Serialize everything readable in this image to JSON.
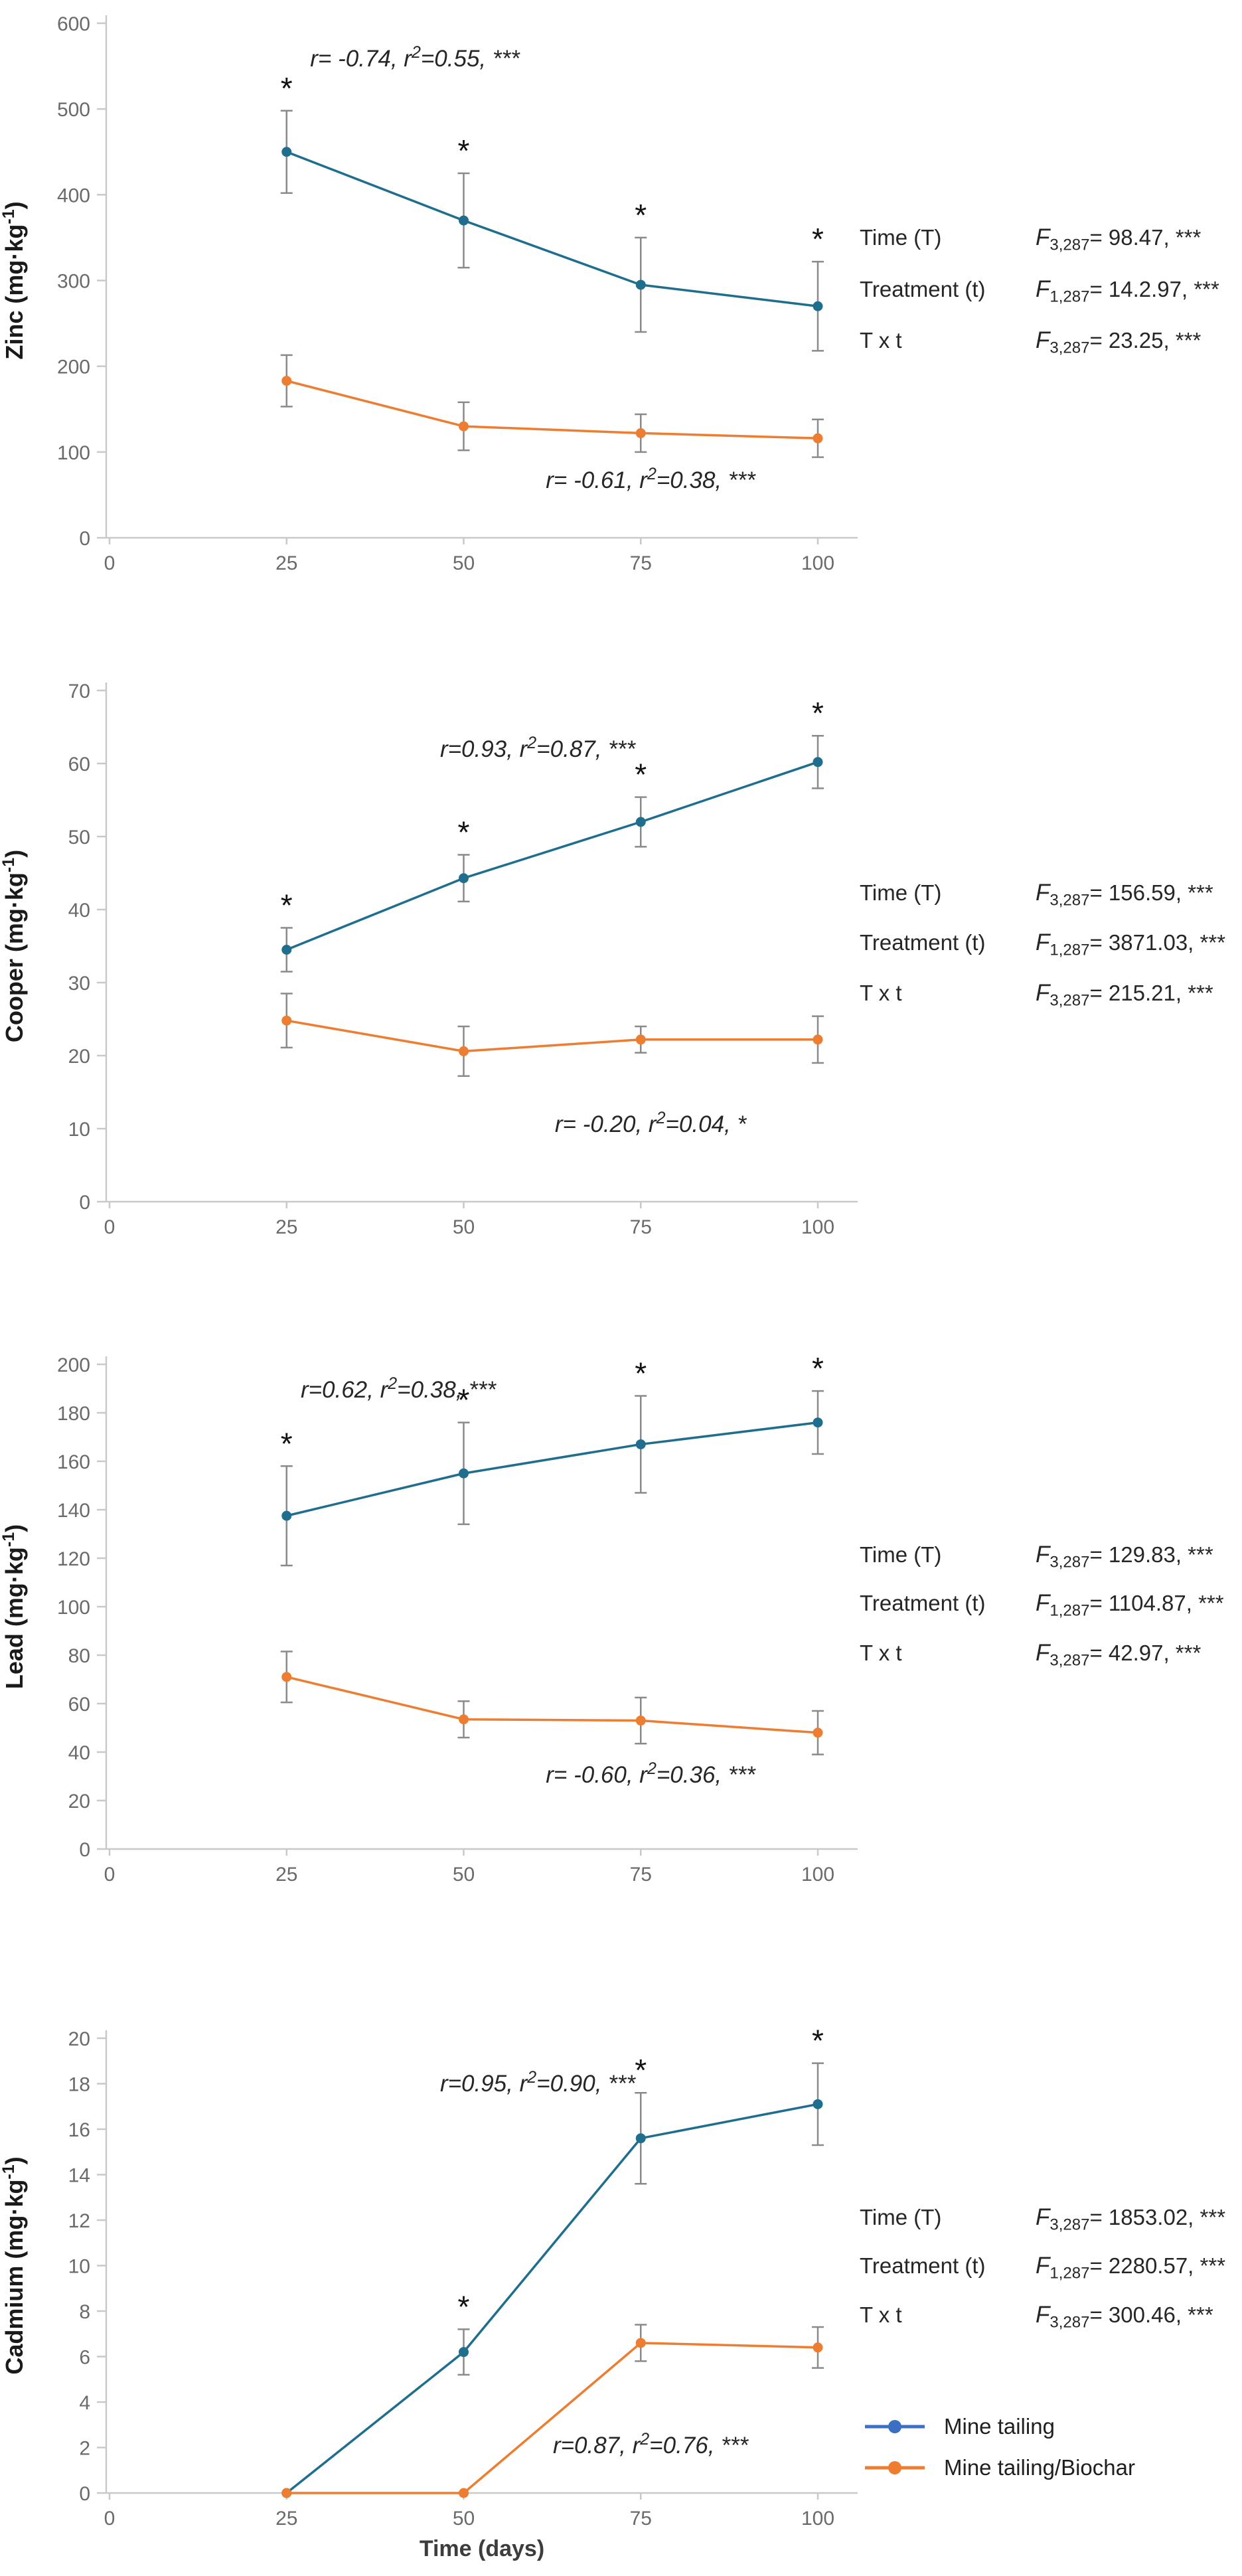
{
  "figure": {
    "xlabel": "Time (days)",
    "x_ticks": [
      0,
      25,
      50,
      75,
      100
    ],
    "legend": [
      {
        "label": "Mine tailing",
        "color": "#3a6fc4"
      },
      {
        "label": "Mine tailing/Biochar",
        "color": "#ed7d31"
      }
    ]
  },
  "colors": {
    "mine_tailing_line": "#1f6e8e",
    "biochar_line": "#ed7d31",
    "error_bar": "#8a8a8a",
    "axis": "#c9c9c9",
    "tick_label": "#6a6a6a",
    "axis_title": "#1a1a1a",
    "annotation_text": "#262626",
    "asterisk": "#111111"
  },
  "chart_data": [
    {
      "type": "line",
      "ylabel": "Zinc (mg·kg⁻¹)",
      "ylim": [
        0,
        600
      ],
      "ytick_step": 100,
      "x": [
        25,
        50,
        75,
        100
      ],
      "series": [
        {
          "name": "Mine tailing",
          "values": [
            450,
            370,
            295,
            270
          ],
          "errors": [
            48,
            55,
            55,
            52
          ],
          "asterisk_at": [
            25,
            50,
            75,
            100
          ]
        },
        {
          "name": "Mine tailing/Biochar",
          "values": [
            183,
            130,
            122,
            116
          ],
          "errors": [
            30,
            28,
            22,
            22
          ]
        }
      ],
      "annotation_top": "r= -0.74, r²=0.55, ***",
      "annotation_bottom": "r= -0.61, r²=0.38, ***",
      "stats": [
        {
          "label": "Time (T)",
          "f_symbol": "F",
          "f_sub": "3,287",
          "f_value": "= 98.47, ***"
        },
        {
          "label": "Treatment (t)",
          "f_symbol": "F",
          "f_sub": "1,287",
          "f_value": "= 14.2.97, ***"
        },
        {
          "label": "T x t",
          "f_symbol": "F",
          "f_sub": "3,287",
          "f_value": "= 23.25, ***"
        }
      ]
    },
    {
      "type": "line",
      "ylabel": "Cooper (mg·kg⁻¹)",
      "ylim": [
        0,
        70
      ],
      "ytick_step": 10,
      "x": [
        25,
        50,
        75,
        100
      ],
      "series": [
        {
          "name": "Mine tailing",
          "values": [
            34.5,
            44.3,
            52,
            60.2
          ],
          "errors": [
            3,
            3.2,
            3.4,
            3.6
          ],
          "asterisk_at": [
            25,
            50,
            75,
            100
          ]
        },
        {
          "name": "Mine tailing/Biochar",
          "values": [
            24.8,
            20.6,
            22.2,
            22.2
          ],
          "errors": [
            3.7,
            3.4,
            1.8,
            3.2
          ]
        }
      ],
      "annotation_top": "r=0.93, r²=0.87, ***",
      "annotation_bottom": "r= -0.20, r²=0.04, *",
      "stats": [
        {
          "label": "Time (T)",
          "f_symbol": "F",
          "f_sub": "3,287",
          "f_value": "= 156.59, ***"
        },
        {
          "label": "Treatment (t)",
          "f_symbol": "F",
          "f_sub": "1,287",
          "f_value": "= 3871.03, ***"
        },
        {
          "label": "T x t",
          "f_symbol": "F",
          "f_sub": "3,287",
          "f_value": "= 215.21, ***"
        }
      ]
    },
    {
      "type": "line",
      "ylabel": "Lead (mg·kg⁻¹)",
      "ylim": [
        0,
        200
      ],
      "ytick_step": 20,
      "x": [
        25,
        50,
        75,
        100
      ],
      "series": [
        {
          "name": "Mine tailing",
          "values": [
            137.5,
            155,
            167,
            176
          ],
          "errors": [
            20.5,
            21,
            20,
            13
          ],
          "asterisk_at": [
            25,
            50,
            75,
            100
          ]
        },
        {
          "name": "Mine tailing/Biochar",
          "values": [
            71,
            53.5,
            53,
            48
          ],
          "errors": [
            10.5,
            7.5,
            9.5,
            9
          ]
        }
      ],
      "annotation_top": "r=0.62, r²=0.38, ***",
      "annotation_bottom": "r= -0.60, r²=0.36, ***",
      "stats": [
        {
          "label": "Time (T)",
          "f_symbol": "F",
          "f_sub": "3,287",
          "f_value": "= 129.83, ***"
        },
        {
          "label": "Treatment (t)",
          "f_symbol": "F",
          "f_sub": "1,287",
          "f_value": "= 1104.87, ***"
        },
        {
          "label": "T x t",
          "f_symbol": "F",
          "f_sub": "3,287",
          "f_value": "= 42.97, ***"
        }
      ]
    },
    {
      "type": "line",
      "ylabel": "Cadmium (mg·kg⁻¹)",
      "ylim": [
        0,
        20
      ],
      "ytick_step": 2,
      "x": [
        25,
        50,
        75,
        100
      ],
      "series": [
        {
          "name": "Mine tailing",
          "values": [
            0,
            6.2,
            15.6,
            17.1
          ],
          "errors": [
            0,
            1.0,
            2.0,
            1.8
          ],
          "asterisk_at": [
            50,
            75,
            100
          ]
        },
        {
          "name": "Mine tailing/Biochar",
          "values": [
            0,
            0,
            6.6,
            6.4
          ],
          "errors": [
            0,
            0,
            0.8,
            0.9
          ]
        }
      ],
      "annotation_top": "r=0.95, r²=0.90, ***",
      "annotation_bottom": "r=0.87, r²=0.76, ***",
      "stats": [
        {
          "label": "Time (T)",
          "f_symbol": "F",
          "f_sub": "3,287",
          "f_value": "= 1853.02, ***"
        },
        {
          "label": "Treatment (t)",
          "f_symbol": "F",
          "f_sub": "1,287",
          "f_value": "= 2280.57, ***"
        },
        {
          "label": "T x t",
          "f_symbol": "F",
          "f_sub": "3,287",
          "f_value": "= 300.46, ***"
        }
      ]
    }
  ]
}
